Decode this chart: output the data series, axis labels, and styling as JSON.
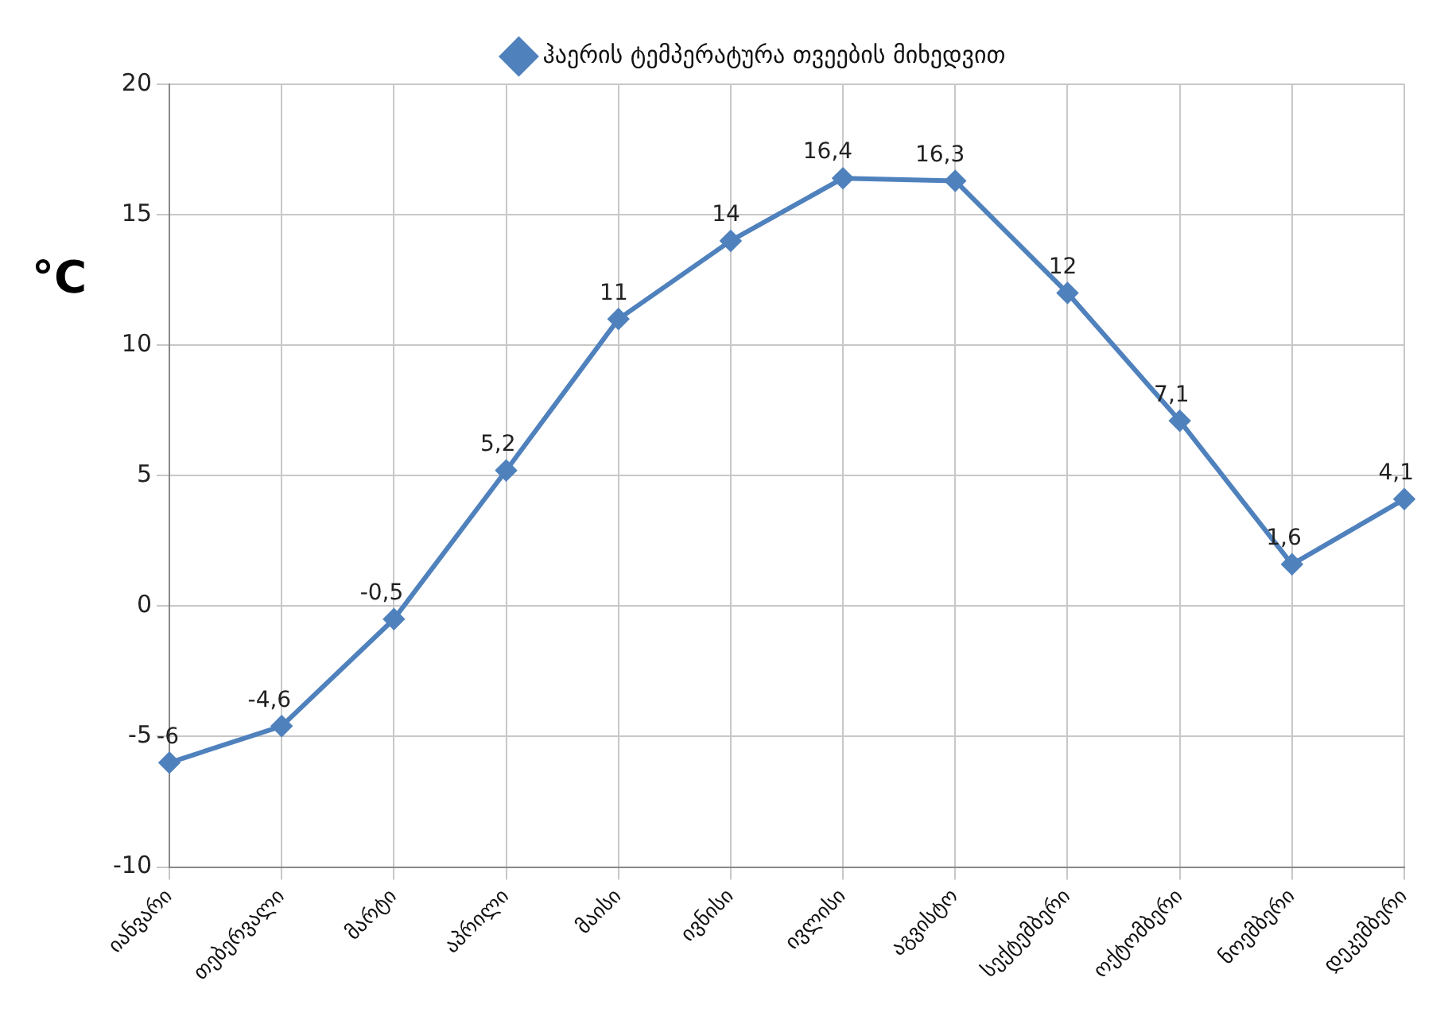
{
  "chart_data": {
    "type": "line",
    "ylabel": "°C",
    "categories": [
      "იანვარი",
      "თებერვალი",
      "მარტი",
      "აპრილი",
      "მაისი",
      "ივნისი",
      "ივლისი",
      "აგვისტო",
      "სექტემბერი",
      "ოქტომბერი",
      "ნოემბერი",
      "დეკემბერი"
    ],
    "series": [
      {
        "name": "ჰაერის ტემპერატურა თვეების მიხედვით",
        "color": "#4f81bd",
        "values": [
          -6,
          -4.6,
          -0.5,
          5.2,
          11,
          14,
          16.4,
          16.3,
          12,
          7.1,
          1.6,
          4.1
        ],
        "value_labels": [
          "-6",
          "-4,6",
          "-0,5",
          "5,2",
          "11",
          "14",
          "16,4",
          "16,3",
          "12",
          "7,1",
          "1,6",
          "4,1"
        ]
      }
    ],
    "ylim": [
      -10,
      20
    ],
    "yticks": [
      -10,
      -5,
      0,
      5,
      10,
      15,
      20
    ],
    "grid": true,
    "legend": "top",
    "marker": "diamond",
    "line_style": "solid"
  }
}
